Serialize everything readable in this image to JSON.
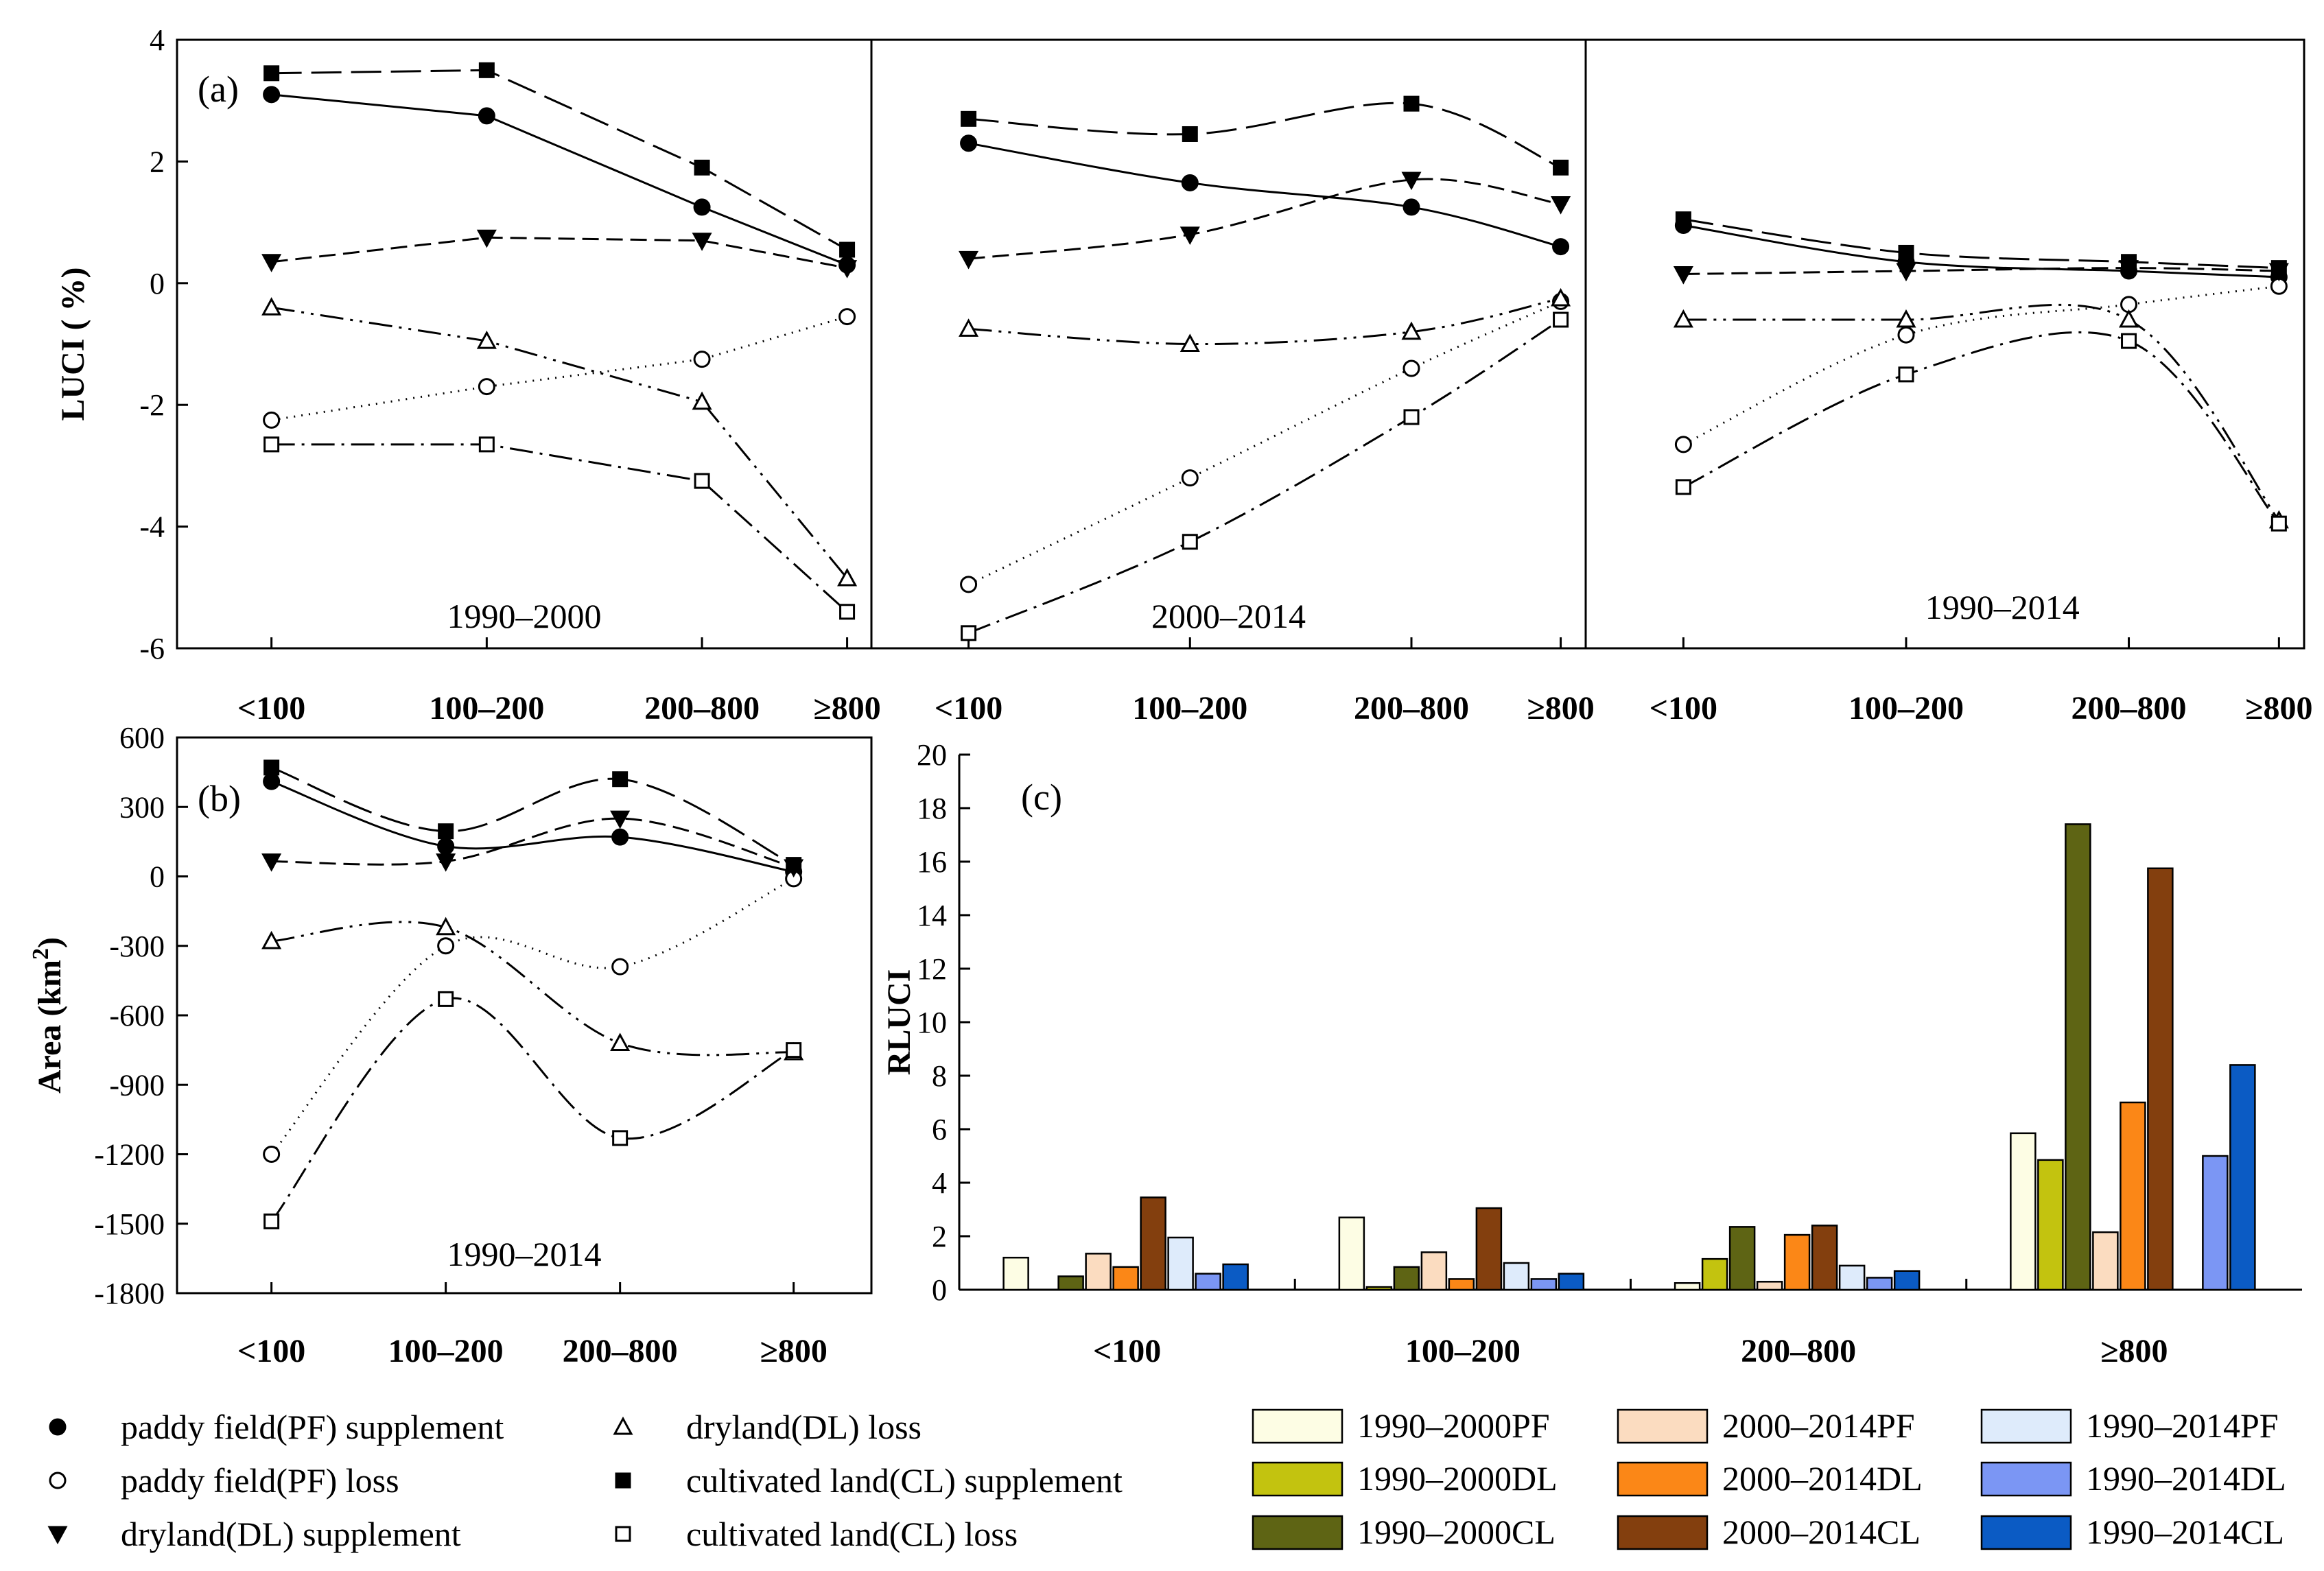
{
  "chart_data": [
    {
      "id": "a",
      "type": "line",
      "panel_label": "(a)",
      "ylabel": "LUCI ( %)",
      "ylim": [
        -6,
        4
      ],
      "yticks": [
        "4",
        "2",
        "0",
        "-2",
        "-4",
        "-6"
      ],
      "categories": [
        "<100",
        "100–200",
        "200–800",
        "≥800"
      ],
      "subpanels": [
        {
          "period": "1990–2000",
          "series": [
            {
              "key": "pf_sup",
              "values": [
                3.1,
                2.75,
                1.25,
                0.3
              ]
            },
            {
              "key": "pf_loss",
              "values": [
                -2.25,
                -1.7,
                -1.25,
                -0.55
              ]
            },
            {
              "key": "dl_sup",
              "values": [
                0.35,
                0.75,
                0.7,
                0.25
              ]
            },
            {
              "key": "dl_loss",
              "values": [
                -0.4,
                -0.95,
                -1.95,
                -4.85
              ]
            },
            {
              "key": "cl_sup",
              "values": [
                3.45,
                3.5,
                1.9,
                0.55
              ]
            },
            {
              "key": "cl_loss",
              "values": [
                -2.65,
                -2.65,
                -3.25,
                -5.4
              ]
            }
          ]
        },
        {
          "period": "2000–2014",
          "series": [
            {
              "key": "pf_sup",
              "values": [
                2.3,
                1.65,
                1.25,
                0.6
              ]
            },
            {
              "key": "pf_loss",
              "values": [
                -4.95,
                -3.2,
                -1.4,
                -0.3
              ]
            },
            {
              "key": "dl_sup",
              "values": [
                0.4,
                0.8,
                1.7,
                1.3
              ]
            },
            {
              "key": "dl_loss",
              "values": [
                -0.75,
                -1.0,
                -0.8,
                -0.25
              ]
            },
            {
              "key": "cl_sup",
              "values": [
                2.7,
                2.45,
                2.95,
                1.9
              ]
            },
            {
              "key": "cl_loss",
              "values": [
                -5.75,
                -4.25,
                -2.2,
                -0.6
              ]
            }
          ]
        },
        {
          "period": "1990–2014",
          "series": [
            {
              "key": "pf_sup",
              "values": [
                0.95,
                0.35,
                0.2,
                0.1
              ]
            },
            {
              "key": "pf_loss",
              "values": [
                -2.65,
                -0.85,
                -0.35,
                -0.05
              ]
            },
            {
              "key": "dl_sup",
              "values": [
                0.15,
                0.2,
                0.25,
                0.2
              ]
            },
            {
              "key": "dl_loss",
              "values": [
                -0.6,
                -0.6,
                -0.6,
                -3.9
              ]
            },
            {
              "key": "cl_sup",
              "values": [
                1.05,
                0.5,
                0.35,
                0.25
              ]
            },
            {
              "key": "cl_loss",
              "values": [
                -3.35,
                -1.5,
                -0.95,
                -3.95
              ]
            }
          ]
        }
      ]
    },
    {
      "id": "b",
      "type": "line",
      "panel_label": "(b)",
      "period": "1990–2014",
      "ylabel": "Area (km",
      "ylabel_sup": "2",
      "ylabel_end": ")",
      "ylim": [
        -1800,
        600
      ],
      "yticks": [
        "600",
        "300",
        "0",
        "-300",
        "-600",
        "-900",
        "-1200",
        "-1500",
        "-1800"
      ],
      "categories": [
        "<100",
        "100–200",
        "200–800",
        "≥800"
      ],
      "series": [
        {
          "key": "pf_sup",
          "values": [
            410,
            130,
            170,
            20
          ]
        },
        {
          "key": "pf_loss",
          "values": [
            -1200,
            -300,
            -390,
            -10
          ]
        },
        {
          "key": "dl_sup",
          "values": [
            65,
            65,
            250,
            40
          ]
        },
        {
          "key": "dl_loss",
          "values": [
            -280,
            -220,
            -720,
            -760
          ]
        },
        {
          "key": "cl_sup",
          "values": [
            470,
            195,
            420,
            50
          ]
        },
        {
          "key": "cl_loss",
          "values": [
            -1490,
            -530,
            -1130,
            -750
          ]
        }
      ]
    },
    {
      "id": "c",
      "type": "bar",
      "panel_label": "(c)",
      "ylabel": "RLUCI",
      "ylim": [
        0,
        20
      ],
      "yticks": [
        "0",
        "2",
        "4",
        "6",
        "8",
        "10",
        "12",
        "14",
        "16",
        "18",
        "20"
      ],
      "categories": [
        "<100",
        "100–200",
        "200–800",
        "≥800"
      ],
      "series": [
        {
          "name": "1990–2000PF",
          "color": "#fdfde4",
          "values": [
            1.2,
            2.7,
            0.25,
            5.85
          ]
        },
        {
          "name": "1990–2000DL",
          "color": "#c3c30f",
          "values": [
            0.0,
            0.1,
            1.15,
            4.85
          ]
        },
        {
          "name": "1990–2000CL",
          "color": "#5e6414",
          "values": [
            0.5,
            0.85,
            2.35,
            17.4
          ]
        },
        {
          "name": "2000–2014PF",
          "color": "#fbdcc0",
          "values": [
            1.35,
            1.4,
            0.3,
            2.15
          ]
        },
        {
          "name": "2000–2014DL",
          "color": "#fb8717",
          "values": [
            0.85,
            0.4,
            2.05,
            7.0
          ]
        },
        {
          "name": "2000–2014CL",
          "color": "#833f0e",
          "values": [
            3.45,
            3.05,
            2.4,
            15.75
          ]
        },
        {
          "name": "1990–2014PF",
          "color": "#deebfb",
          "values": [
            1.95,
            1.0,
            0.9,
            0.0
          ]
        },
        {
          "name": "1990–2014DL",
          "color": "#7b96f4",
          "values": [
            0.6,
            0.4,
            0.45,
            5.0
          ]
        },
        {
          "name": "1990–2014CL",
          "color": "#0b5bc4",
          "values": [
            0.95,
            0.6,
            0.7,
            8.4
          ]
        }
      ]
    }
  ],
  "line_legend": [
    {
      "key": "pf_sup",
      "label": "paddy field(PF) supplement"
    },
    {
      "key": "pf_loss",
      "label": "paddy field(PF) loss"
    },
    {
      "key": "dl_sup",
      "label": "dryland(DL) supplement"
    },
    {
      "key": "dl_loss",
      "label": "dryland(DL) loss"
    },
    {
      "key": "cl_sup",
      "label": "cultivated land(CL) supplement"
    },
    {
      "key": "cl_loss",
      "label": "cultivated land(CL) loss"
    }
  ]
}
